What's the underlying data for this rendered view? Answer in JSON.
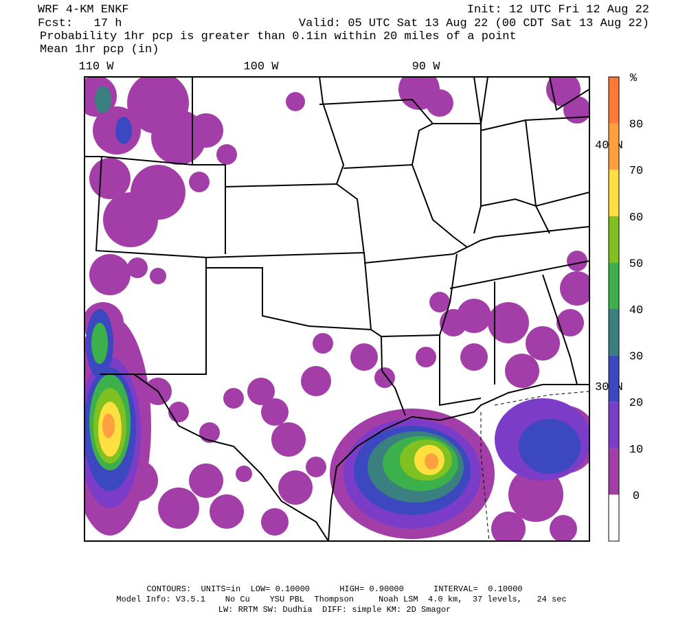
{
  "header": {
    "model": "WRF 4-KM ENKF",
    "init": "Init: 12 UTC Fri 12 Aug 22",
    "fcst": "Fcst:   17 h",
    "valid": "Valid: 05 UTC Sat 13 Aug 22 (00 CDT Sat 13 Aug 22)",
    "field1": "Probability 1hr pcp is greater than 0.1in within 20 miles of a point",
    "field2": "Mean 1hr pcp (in)"
  },
  "map": {
    "lon_labels": [
      "110 W",
      "100 W",
      "90 W"
    ],
    "lat_labels": [
      "40 N",
      "30 N"
    ]
  },
  "colorbar": {
    "unit": "%",
    "levels": [
      0,
      10,
      20,
      30,
      40,
      50,
      60,
      70,
      80
    ],
    "colors": [
      "#ffffff",
      "#a33ea8",
      "#7b3cc8",
      "#3c48c0",
      "#3a8080",
      "#3cb04a",
      "#80c020",
      "#ffe040",
      "#ffa040",
      "#ff7838"
    ]
  },
  "footer": [
    "CONTOURS:  UNITS=in  LOW= 0.10000      HIGH= 0.90000      INTERVAL=  0.10000",
    "Model Info: V3.5.1    No Cu    YSU PBL  Thompson     Noah LSM  4.0 km,  37 levels,   24 sec",
    "LW: RRTM SW: Dudhia  DIFF: simple KM: 2D Smagor"
  ]
}
